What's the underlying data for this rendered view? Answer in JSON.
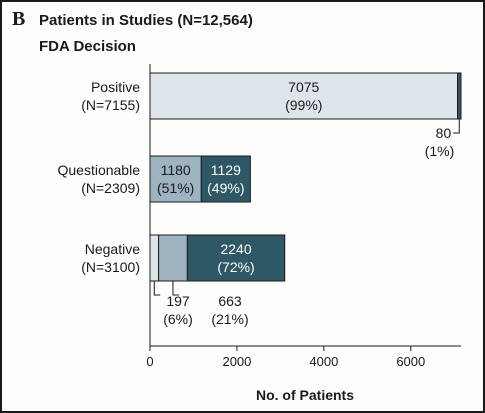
{
  "panel": {
    "letter": "B",
    "title": "Patients in Studies (N=12,564)",
    "subtitle": "FDA Decision"
  },
  "colors": {
    "light": "#dde5ea",
    "medium": "#9db3bf",
    "dark": "#2e5866",
    "outline": "#1a1a1a"
  },
  "chart_data": {
    "type": "bar",
    "orientation": "horizontal",
    "stacked": true,
    "title": "Patients in Studies (N=12,564)",
    "subtitle": "FDA Decision",
    "xlabel": "No. of Patients",
    "xlim": [
      0,
      7155
    ],
    "xticks": [
      0,
      2000,
      4000,
      6000
    ],
    "grid": false,
    "categories": [
      {
        "name": "Positive",
        "n_label": "(N=7155)",
        "segments": [
          {
            "value": 7075,
            "percent": "99%",
            "color": "light",
            "label": "7075",
            "pct_label": "(99%)",
            "label_position": "inside"
          },
          {
            "value": 80,
            "percent": "1%",
            "color": "dark",
            "label": "80",
            "pct_label": "(1%)",
            "label_position": "callout"
          }
        ]
      },
      {
        "name": "Questionable",
        "n_label": "(N=2309)",
        "segments": [
          {
            "value": 1180,
            "percent": "51%",
            "color": "medium",
            "label": "1180",
            "pct_label": "(51%)",
            "label_position": "inside"
          },
          {
            "value": 1129,
            "percent": "49%",
            "color": "dark",
            "label": "1129",
            "pct_label": "(49%)",
            "label_position": "inside"
          }
        ]
      },
      {
        "name": "Negative",
        "n_label": "(N=3100)",
        "segments": [
          {
            "value": 197,
            "percent": "6%",
            "color": "light",
            "label": "197",
            "pct_label": "(6%)",
            "label_position": "callout"
          },
          {
            "value": 663,
            "percent": "21%",
            "color": "medium",
            "label": "663",
            "pct_label": "(21%)",
            "label_position": "callout"
          },
          {
            "value": 2240,
            "percent": "72%",
            "color": "dark",
            "label": "2240",
            "pct_label": "(72%)",
            "label_position": "inside"
          }
        ]
      }
    ]
  }
}
